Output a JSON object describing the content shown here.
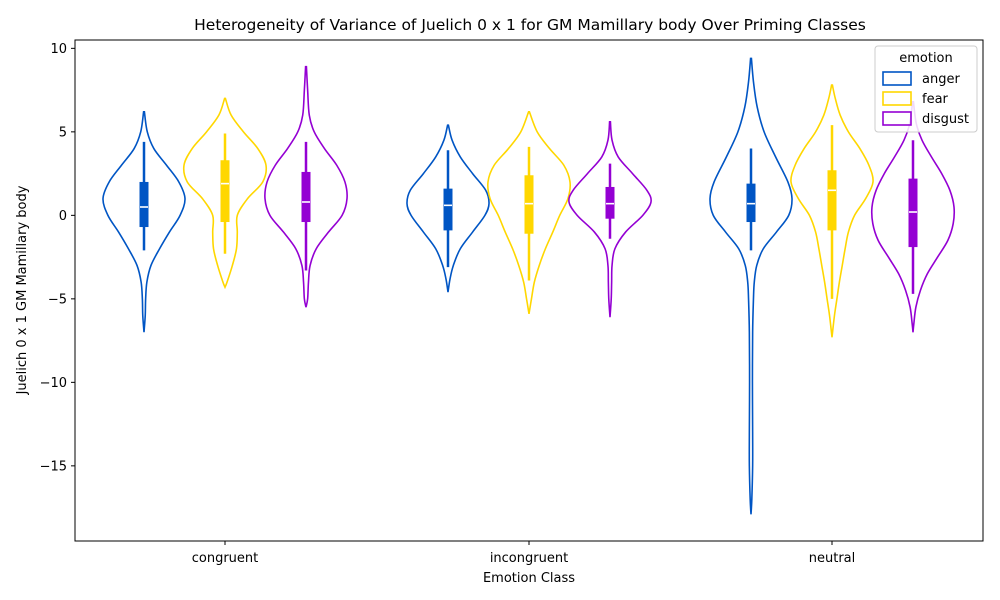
{
  "chart_data": {
    "type": "violin",
    "title": "Heterogeneity of Variance of Juelich 0 x 1 for GM Mamillary body Over Priming Classes",
    "xlabel": "Emotion Class",
    "ylabel": "Juelich 0 x 1 GM Mamillary body",
    "categories": [
      "congruent",
      "incongruent",
      "neutral"
    ],
    "ylim": [
      -19.5,
      10.5
    ],
    "yticks": [
      10,
      5,
      0,
      -5,
      -10,
      -15
    ],
    "ytick_labels": [
      "10",
      "5",
      "0",
      "−5",
      "−10",
      "−15"
    ],
    "legend": {
      "title": "emotion",
      "position": "top-right"
    },
    "series": [
      {
        "name": "anger",
        "color": "#0055c4",
        "groups": [
          {
            "min": -7.0,
            "max": 6.2,
            "q1": -0.7,
            "median": 0.5,
            "q3": 2.0,
            "whisker_low": -2.1,
            "whisker_high": 4.4,
            "profile": [
              [
                6.2,
                0.01
              ],
              [
                5.0,
                0.08
              ],
              [
                4.0,
                0.24
              ],
              [
                3.0,
                0.55
              ],
              [
                2.0,
                0.85
              ],
              [
                1.0,
                1.0
              ],
              [
                0.0,
                0.88
              ],
              [
                -1.0,
                0.62
              ],
              [
                -2.0,
                0.38
              ],
              [
                -3.0,
                0.17
              ],
              [
                -4.0,
                0.07
              ],
              [
                -5.0,
                0.04
              ],
              [
                -6.0,
                0.03
              ],
              [
                -7.0,
                0.0
              ]
            ]
          },
          {
            "min": -4.6,
            "max": 5.4,
            "q1": -0.9,
            "median": 0.6,
            "q3": 1.6,
            "whisker_low": -3.1,
            "whisker_high": 3.9,
            "profile": [
              [
                5.4,
                0.01
              ],
              [
                4.5,
                0.1
              ],
              [
                3.5,
                0.3
              ],
              [
                2.5,
                0.6
              ],
              [
                1.5,
                0.92
              ],
              [
                0.7,
                1.0
              ],
              [
                0.0,
                0.9
              ],
              [
                -1.0,
                0.6
              ],
              [
                -2.0,
                0.3
              ],
              [
                -3.0,
                0.13
              ],
              [
                -3.8,
                0.05
              ],
              [
                -4.6,
                0.0
              ]
            ]
          },
          {
            "min": -17.9,
            "max": 9.4,
            "q1": -0.4,
            "median": 0.7,
            "q3": 1.9,
            "whisker_low": -2.1,
            "whisker_high": 4.0,
            "profile": [
              [
                9.4,
                0.01
              ],
              [
                8.0,
                0.06
              ],
              [
                6.5,
                0.15
              ],
              [
                5.0,
                0.32
              ],
              [
                3.5,
                0.6
              ],
              [
                2.0,
                0.9
              ],
              [
                1.0,
                1.0
              ],
              [
                0.0,
                0.92
              ],
              [
                -1.0,
                0.62
              ],
              [
                -2.0,
                0.3
              ],
              [
                -3.0,
                0.14
              ],
              [
                -4.0,
                0.08
              ],
              [
                -5.0,
                0.06
              ],
              [
                -7.0,
                0.04
              ],
              [
                -10.0,
                0.035
              ],
              [
                -13.0,
                0.04
              ],
              [
                -15.0,
                0.04
              ],
              [
                -17.0,
                0.02
              ],
              [
                -17.9,
                0.0
              ]
            ]
          }
        ]
      },
      {
        "name": "fear",
        "color": "#ffd700",
        "groups": [
          {
            "min": -4.3,
            "max": 7.0,
            "q1": -0.4,
            "median": 1.9,
            "q3": 3.3,
            "whisker_low": -2.3,
            "whisker_high": 4.9,
            "profile": [
              [
                7.0,
                0.01
              ],
              [
                6.0,
                0.15
              ],
              [
                5.0,
                0.45
              ],
              [
                4.0,
                0.8
              ],
              [
                3.0,
                1.0
              ],
              [
                2.0,
                0.92
              ],
              [
                1.0,
                0.55
              ],
              [
                0.0,
                0.3
              ],
              [
                -1.0,
                0.3
              ],
              [
                -2.0,
                0.28
              ],
              [
                -3.0,
                0.18
              ],
              [
                -4.0,
                0.05
              ],
              [
                -4.3,
                0.0
              ]
            ]
          },
          {
            "min": -5.9,
            "max": 6.2,
            "q1": -1.1,
            "median": 0.7,
            "q3": 2.4,
            "whisker_low": -3.9,
            "whisker_high": 4.1,
            "profile": [
              [
                6.2,
                0.01
              ],
              [
                5.0,
                0.2
              ],
              [
                4.0,
                0.5
              ],
              [
                3.0,
                0.85
              ],
              [
                2.0,
                1.0
              ],
              [
                1.0,
                0.95
              ],
              [
                0.0,
                0.75
              ],
              [
                -1.0,
                0.58
              ],
              [
                -2.0,
                0.4
              ],
              [
                -3.0,
                0.25
              ],
              [
                -4.0,
                0.13
              ],
              [
                -5.0,
                0.06
              ],
              [
                -5.9,
                0.0
              ]
            ]
          },
          {
            "min": -7.3,
            "max": 7.8,
            "q1": -0.9,
            "median": 1.5,
            "q3": 2.7,
            "whisker_low": -5.0,
            "whisker_high": 5.4,
            "profile": [
              [
                7.8,
                0.01
              ],
              [
                7.0,
                0.08
              ],
              [
                6.0,
                0.2
              ],
              [
                5.0,
                0.4
              ],
              [
                4.0,
                0.68
              ],
              [
                3.0,
                0.9
              ],
              [
                2.0,
                1.0
              ],
              [
                1.0,
                0.82
              ],
              [
                0.0,
                0.55
              ],
              [
                -1.0,
                0.4
              ],
              [
                -2.0,
                0.32
              ],
              [
                -3.0,
                0.25
              ],
              [
                -4.0,
                0.18
              ],
              [
                -5.0,
                0.12
              ],
              [
                -6.0,
                0.06
              ],
              [
                -7.3,
                0.0
              ]
            ]
          }
        ]
      },
      {
        "name": "disgust",
        "color": "#9400d3",
        "groups": [
          {
            "min": -5.5,
            "max": 8.9,
            "q1": -0.4,
            "median": 0.8,
            "q3": 2.6,
            "whisker_low": -3.3,
            "whisker_high": 4.4,
            "profile": [
              [
                8.9,
                0.01
              ],
              [
                7.5,
                0.04
              ],
              [
                6.0,
                0.08
              ],
              [
                5.0,
                0.2
              ],
              [
                4.0,
                0.45
              ],
              [
                3.0,
                0.75
              ],
              [
                2.0,
                0.95
              ],
              [
                1.0,
                1.0
              ],
              [
                0.0,
                0.88
              ],
              [
                -1.0,
                0.55
              ],
              [
                -2.0,
                0.25
              ],
              [
                -3.0,
                0.1
              ],
              [
                -4.0,
                0.06
              ],
              [
                -5.0,
                0.04
              ],
              [
                -5.5,
                0.0
              ]
            ]
          },
          {
            "min": -6.1,
            "max": 5.6,
            "q1": -0.2,
            "median": 0.7,
            "q3": 1.7,
            "whisker_low": -1.4,
            "whisker_high": 3.1,
            "profile": [
              [
                5.6,
                0.01
              ],
              [
                4.5,
                0.05
              ],
              [
                3.5,
                0.2
              ],
              [
                2.5,
                0.55
              ],
              [
                1.5,
                0.9
              ],
              [
                0.8,
                1.0
              ],
              [
                0.0,
                0.8
              ],
              [
                -1.0,
                0.38
              ],
              [
                -2.0,
                0.12
              ],
              [
                -3.0,
                0.05
              ],
              [
                -4.0,
                0.04
              ],
              [
                -5.0,
                0.03
              ],
              [
                -6.1,
                0.0
              ]
            ]
          },
          {
            "min": -7.0,
            "max": 6.8,
            "q1": -1.9,
            "median": 0.2,
            "q3": 2.2,
            "whisker_low": -4.7,
            "whisker_high": 4.5,
            "profile": [
              [
                6.8,
                0.01
              ],
              [
                5.5,
                0.08
              ],
              [
                4.5,
                0.22
              ],
              [
                3.5,
                0.45
              ],
              [
                2.5,
                0.7
              ],
              [
                1.5,
                0.9
              ],
              [
                0.5,
                1.0
              ],
              [
                -0.5,
                0.98
              ],
              [
                -1.5,
                0.85
              ],
              [
                -2.5,
                0.6
              ],
              [
                -3.5,
                0.35
              ],
              [
                -4.5,
                0.18
              ],
              [
                -5.5,
                0.07
              ],
              [
                -6.5,
                0.02
              ],
              [
                -7.0,
                0.0
              ]
            ]
          }
        ]
      }
    ]
  }
}
